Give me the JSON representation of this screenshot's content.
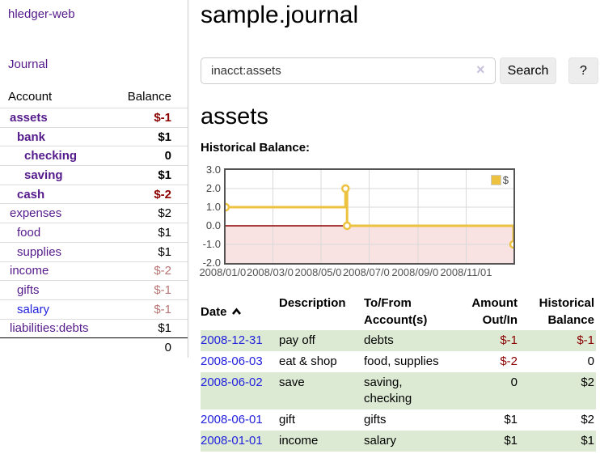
{
  "sidebar": {
    "brand": "hledger-web",
    "nav_journal": "Journal",
    "accounts_table": {
      "account_header": "Account",
      "balance_header": "Balance",
      "rows": [
        {
          "name": "assets",
          "depth": 1,
          "bold": true,
          "balance": "$-1",
          "balance_style": "neg-strong"
        },
        {
          "name": "bank",
          "depth": 2,
          "bold": true,
          "balance": "$1",
          "balance_style": "pos"
        },
        {
          "name": "checking",
          "depth": 3,
          "bold": true,
          "balance": "0",
          "balance_style": "pos"
        },
        {
          "name": "saving",
          "depth": 3,
          "bold": true,
          "balance": "$1",
          "balance_style": "pos"
        },
        {
          "name": "cash",
          "depth": 2,
          "bold": true,
          "balance": "$-2",
          "balance_style": "neg-strong"
        },
        {
          "name": "expenses",
          "depth": 1,
          "bold": false,
          "balance": "$2",
          "balance_style": "pos"
        },
        {
          "name": "food",
          "depth": 2,
          "bold": false,
          "balance": "$1",
          "balance_style": "pos"
        },
        {
          "name": "supplies",
          "depth": 2,
          "bold": false,
          "balance": "$1",
          "balance_style": "pos"
        },
        {
          "name": "income",
          "depth": 1,
          "bold": false,
          "balance": "$-2",
          "balance_style": "neg-muted"
        },
        {
          "name": "gifts",
          "depth": 2,
          "bold": false,
          "balance": "$-1",
          "balance_style": "neg-muted"
        },
        {
          "name": "salary",
          "depth": 2,
          "bold": false,
          "link_color": "blue",
          "balance": "$-1",
          "balance_style": "neg-muted"
        },
        {
          "name": "liabilities:debts",
          "depth": 1,
          "bold": false,
          "balance": "$1",
          "balance_style": "pos"
        }
      ],
      "total": "0"
    }
  },
  "header": {
    "title": "sample.journal"
  },
  "search": {
    "value": "inacct:assets",
    "clear_icon": "×",
    "button_label": "Search",
    "help_label": "?"
  },
  "account_page": {
    "title": "assets",
    "chart_label": "Historical Balance:"
  },
  "chart_data": {
    "type": "line",
    "step": true,
    "title": "Historical Balance:",
    "series": [
      {
        "name": "$",
        "color": "#edc240",
        "points": [
          [
            "2008-01-01",
            1
          ],
          [
            "2008-06-01",
            2
          ],
          [
            "2008-06-02",
            2
          ],
          [
            "2008-06-03",
            0
          ],
          [
            "2008-12-31",
            -1
          ]
        ]
      }
    ],
    "xlim": [
      "2008-01-01",
      "2008-12-31"
    ],
    "ylim": [
      -2,
      3
    ],
    "x_tick_labels": [
      "2008/01/01",
      "2008/03/01",
      "2008/05/01",
      "2008/07/01",
      "2008/09/01",
      "2008/11/01"
    ],
    "x_tick_dates": [
      "2008-01-01",
      "2008-03-01",
      "2008-05-01",
      "2008-07-01",
      "2008-09-01",
      "2008-11-01"
    ],
    "y_tick_labels": [
      "3.0",
      "2.0",
      "1.0",
      "0.0",
      "-1.0",
      "-2.0"
    ],
    "grid": true,
    "legend_position": "top-right",
    "legend_label": "$",
    "grid_color": "#d9d9d9",
    "border_color": "#545454",
    "negative_fill": "#f9e2e2",
    "zero_line_color": "#8b0000"
  },
  "register": {
    "headers": [
      "Date",
      "Description",
      "To/From Account(s)",
      "Amount Out/In",
      "Historical Balance"
    ],
    "sort_icon": "chevron-up",
    "rows": [
      {
        "date": "2008-12-31",
        "description": "pay off",
        "accounts": "debts",
        "amount": "$-1",
        "amount_negative": true,
        "balance": "$-1",
        "balance_negative": true
      },
      {
        "date": "2008-06-03",
        "description": "eat & shop",
        "accounts": "food, supplies",
        "amount": "$-2",
        "amount_negative": true,
        "balance": "0",
        "balance_negative": false
      },
      {
        "date": "2008-06-02",
        "description": "save",
        "accounts": "saving, checking",
        "amount": "0",
        "amount_negative": false,
        "balance": "$2",
        "balance_negative": false
      },
      {
        "date": "2008-06-01",
        "description": "gift",
        "accounts": "gifts",
        "amount": "$1",
        "amount_negative": false,
        "balance": "$2",
        "balance_negative": false
      },
      {
        "date": "2008-01-01",
        "description": "income",
        "accounts": "salary",
        "amount": "$1",
        "amount_negative": false,
        "balance": "$1",
        "balance_negative": false
      }
    ]
  }
}
